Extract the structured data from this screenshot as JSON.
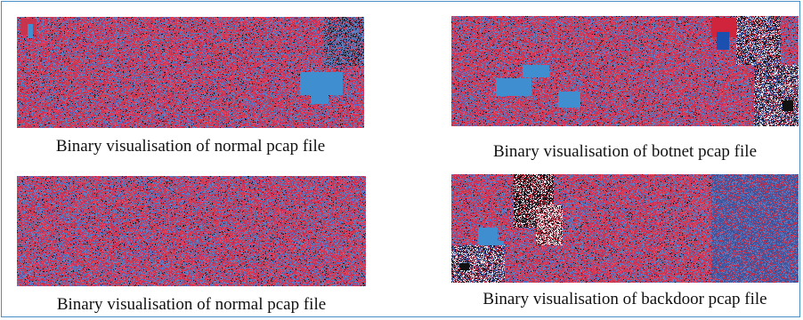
{
  "panels": [
    {
      "caption": "Binary visualisation of normal pcap file",
      "pattern": "normal-a"
    },
    {
      "caption": "Binary visualisation of botnet pcap file",
      "pattern": "botnet"
    },
    {
      "caption": "Binary visualisation of normal pcap file",
      "pattern": "normal-b"
    },
    {
      "caption": "Binary visualisation of backdoor pcap file",
      "pattern": "backdoor"
    }
  ],
  "colors": {
    "noise_red": "#c0304a",
    "noise_blue": "#4a6fb0",
    "cyan_block": "#3f8ed0",
    "border": "#4a90c8"
  }
}
